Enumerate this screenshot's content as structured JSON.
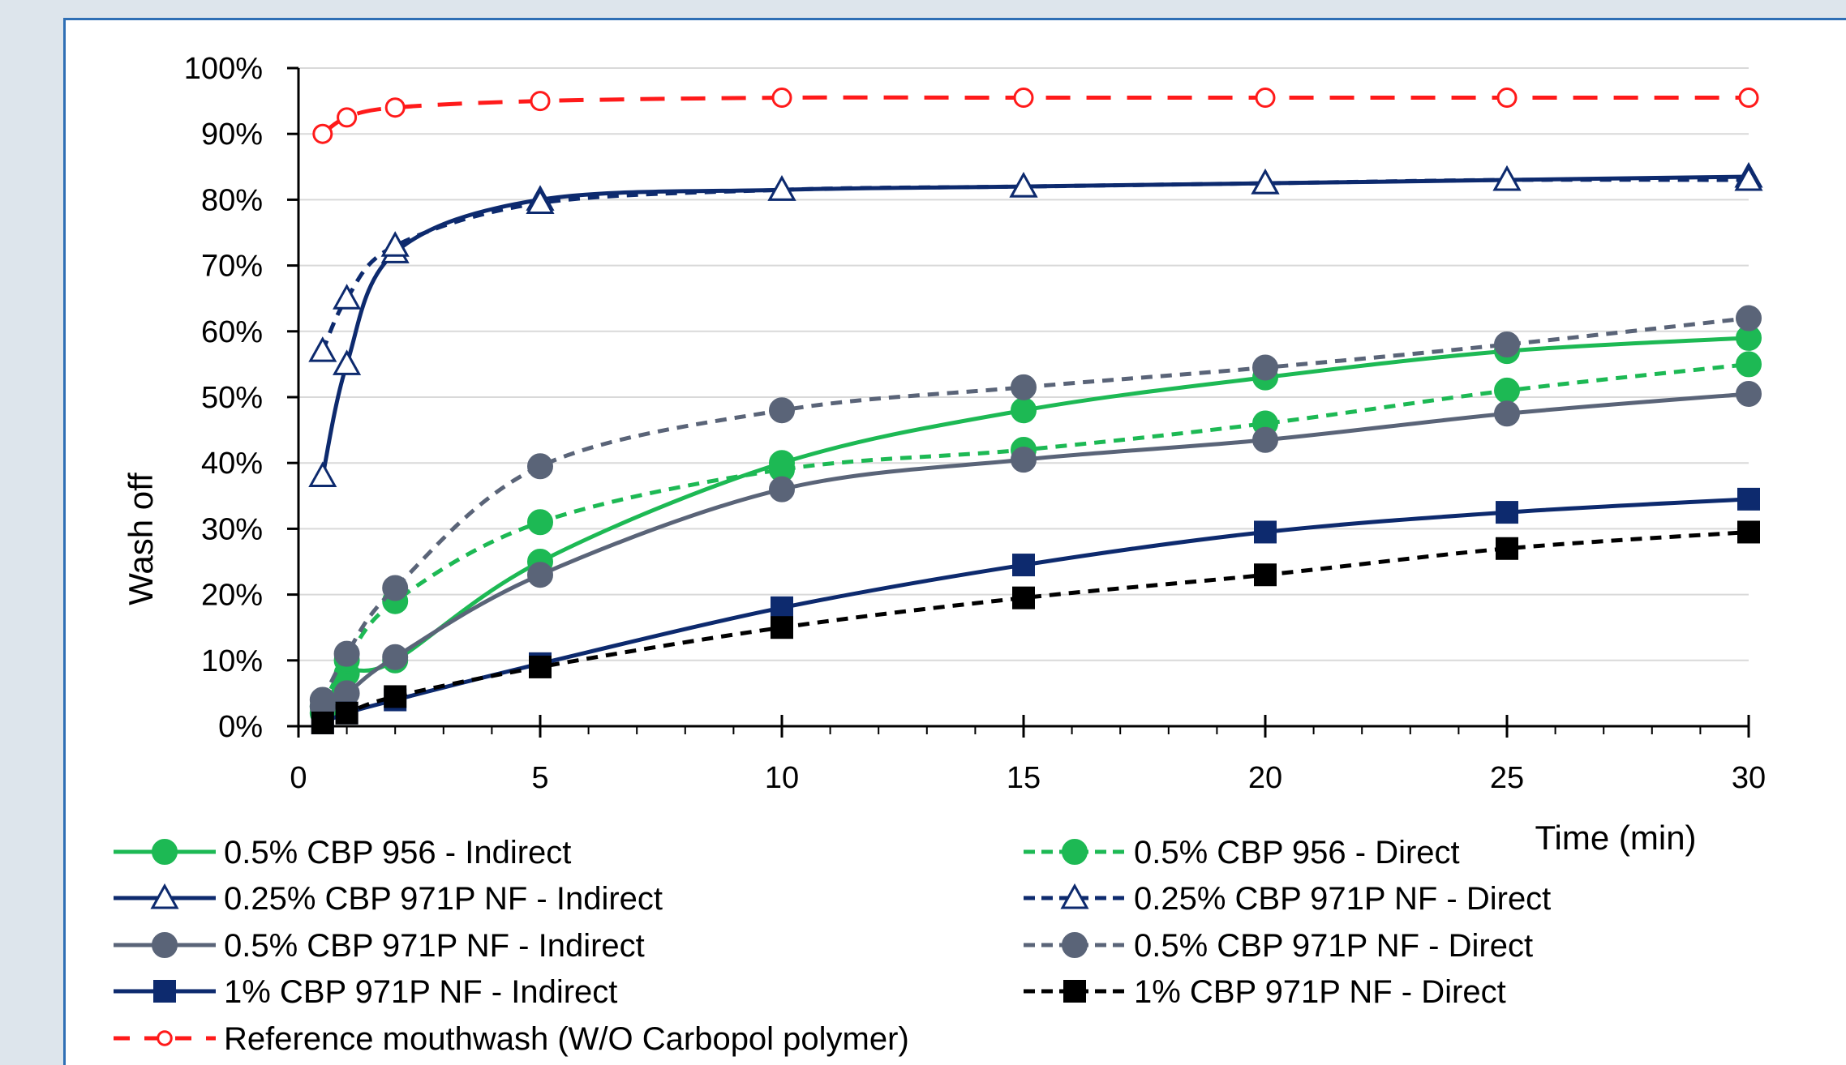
{
  "chart_data": {
    "type": "line",
    "xlabel": "Time (min)",
    "ylabel": "Wash off",
    "xlim": [
      0,
      30
    ],
    "ylim": [
      0,
      100
    ],
    "x_ticks": [
      "0",
      "5",
      "10",
      "15",
      "20",
      "25",
      "30"
    ],
    "y_ticks": [
      "0%",
      "10%",
      "20%",
      "30%",
      "40%",
      "50%",
      "60%",
      "70%",
      "80%",
      "90%",
      "100%"
    ],
    "grid": "horizontal",
    "legend_position": "bottom",
    "x": [
      0.5,
      1,
      2,
      5,
      10,
      15,
      20,
      25,
      30
    ],
    "series": [
      {
        "name": "0.5% CBP 956 - Indirect",
        "color": "#1db954",
        "dash": "solid",
        "marker": "circle-filled",
        "values": [
          2,
          8,
          10,
          25,
          40,
          48,
          53,
          57,
          59
        ]
      },
      {
        "name": "0.5% CBP 956 - Direct",
        "color": "#1db954",
        "dash": "dashed",
        "marker": "circle-filled",
        "values": [
          3,
          10,
          19,
          31,
          39,
          42,
          46,
          51,
          55
        ]
      },
      {
        "name": "0.25% CBP 971P NF - Indirect",
        "color": "#0d2a6e",
        "dash": "solid",
        "marker": "triangle-open",
        "values": [
          38,
          55,
          72,
          80,
          81.5,
          82,
          82.5,
          83,
          83.5
        ]
      },
      {
        "name": "0.25% CBP 971P NF - Direct",
        "color": "#0d2a6e",
        "dash": "dashed",
        "marker": "triangle-open",
        "values": [
          57,
          65,
          73,
          79.5,
          81.5,
          82,
          82.5,
          83,
          83
        ]
      },
      {
        "name": "0.5% CBP 971P NF - Indirect",
        "color": "#5a6478",
        "dash": "solid",
        "marker": "circle-filled",
        "values": [
          3,
          5,
          10.5,
          23,
          36,
          40.5,
          43.5,
          47.5,
          50.5
        ]
      },
      {
        "name": "0.5% CBP 971P NF - Direct",
        "color": "#5a6478",
        "dash": "dashed",
        "marker": "circle-filled",
        "values": [
          4,
          11,
          21,
          39.5,
          48,
          51.5,
          54.5,
          58,
          62
        ]
      },
      {
        "name": "1% CBP 971P NF - Indirect",
        "color": "#0d2a6e",
        "dash": "solid",
        "marker": "square-filled",
        "values": [
          0.5,
          2,
          4,
          9.5,
          18,
          24.5,
          29.5,
          32.5,
          34.5
        ]
      },
      {
        "name": "1% CBP 971P NF - Direct",
        "color": "#000000",
        "dash": "dashed",
        "marker": "square-filled",
        "values": [
          0.5,
          2,
          4.5,
          9,
          15,
          19.5,
          23,
          27,
          29.5
        ]
      },
      {
        "name": "Reference mouthwash (W/O Carbopol polymer)",
        "color": "#ff1a1a",
        "dash": "longdash",
        "marker": "circle-open",
        "values": [
          90,
          92.5,
          94,
          95,
          95.5,
          95.5,
          95.5,
          95.5,
          95.5
        ]
      }
    ]
  }
}
